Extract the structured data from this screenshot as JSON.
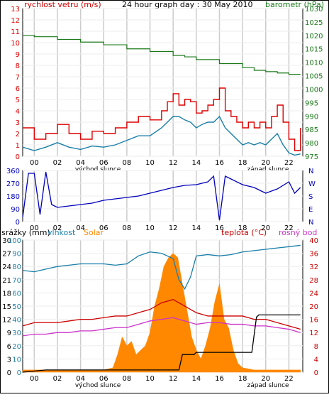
{
  "header": {
    "wind_label": "rychlost vetru (m/s)",
    "title": "24 hour graph day : 30 May 2010",
    "baro_label": "barometr (hPa)",
    "rain_label": "srážky (mm)",
    "humidity_label": "vlhkost",
    "solar_label": "Solar",
    "temp_label": "teplota (°C)",
    "dew_label": "rosný bod"
  },
  "colors": {
    "wind_max": "#dd0000",
    "wind_avg": "#1a7fa8",
    "pressure": "#1a7a1a",
    "direction": "#0000bb",
    "humidity": "#1a7fa8",
    "solar": "#ff8800",
    "temperature": "#cc0000",
    "dew": "#cc33cc",
    "rain": "#000000",
    "grid": "#cccccc"
  },
  "chart_data": [
    {
      "type": "line",
      "name": "wind-and-pressure",
      "x_ticks": [
        "00",
        "02",
        "04",
        "06",
        "08",
        "10",
        "12",
        "14",
        "16",
        "18",
        "20",
        "22"
      ],
      "sunrise_label": "východ slunce",
      "sunset_label": "západ slunce",
      "wind_ylim": [
        0,
        13
      ],
      "wind_ticks": [
        0,
        1,
        2,
        3,
        4,
        5,
        6,
        7,
        8,
        9,
        10,
        11,
        12,
        13
      ],
      "pressure_ylim": [
        975,
        1030
      ],
      "pressure_ticks": [
        975,
        980,
        985,
        990,
        995,
        1000,
        1005,
        1010,
        1015,
        1020,
        1025,
        1030
      ],
      "wind_max": {
        "x": [
          -1,
          0,
          1,
          2,
          3,
          4,
          5,
          6,
          7,
          8,
          9,
          10,
          11,
          11.5,
          12,
          12.5,
          13,
          13.5,
          14,
          14.5,
          15,
          15.5,
          16,
          16.5,
          17,
          17.5,
          18,
          18.5,
          19,
          19.5,
          20,
          20.5,
          21,
          21.5,
          22,
          22.5,
          23
        ],
        "values": [
          2.5,
          1.5,
          2.0,
          2.8,
          2.0,
          1.5,
          2.2,
          2.0,
          2.5,
          3.0,
          3.5,
          3.2,
          4.0,
          4.8,
          5.5,
          4.5,
          5.0,
          4.8,
          3.8,
          4.0,
          4.5,
          5.0,
          6.0,
          4.0,
          3.5,
          3.0,
          2.5,
          3.0,
          2.5,
          3.0,
          2.5,
          3.5,
          4.5,
          3.0,
          1.5,
          0.5,
          2.5
        ]
      },
      "wind_avg": {
        "x": [
          -1,
          0,
          1,
          2,
          3,
          4,
          5,
          6,
          7,
          8,
          9,
          10,
          11,
          11.5,
          12,
          12.5,
          13,
          13.5,
          14,
          14.5,
          15,
          15.5,
          16,
          16.5,
          17,
          17.5,
          18,
          18.5,
          19,
          19.5,
          20,
          20.5,
          21,
          21.5,
          22,
          22.5,
          23
        ],
        "values": [
          0.8,
          0.5,
          0.8,
          1.2,
          0.8,
          0.6,
          0.9,
          0.8,
          1.0,
          1.4,
          1.8,
          1.8,
          2.5,
          3.0,
          3.5,
          3.5,
          3.2,
          3.0,
          2.5,
          2.8,
          3.0,
          3.0,
          3.5,
          2.5,
          2.0,
          1.5,
          1.0,
          1.2,
          1.0,
          1.2,
          1.0,
          1.5,
          2.0,
          1.0,
          0.3,
          0.1,
          0.2
        ]
      },
      "pressure": {
        "x": [
          -1,
          0,
          2,
          4,
          6,
          8,
          10,
          12,
          13,
          14,
          16,
          18,
          19,
          20,
          21,
          22,
          23
        ],
        "values": [
          1020,
          1019.5,
          1018.5,
          1017.5,
          1016.5,
          1015,
          1014,
          1012.5,
          1012,
          1011,
          1009.5,
          1008,
          1007,
          1006.5,
          1006,
          1005.5,
          1005.5
        ]
      }
    },
    {
      "type": "line",
      "name": "wind-direction",
      "x_ticks": [
        "00",
        "02",
        "04",
        "06",
        "08",
        "10",
        "12",
        "14",
        "16",
        "18",
        "20",
        "22"
      ],
      "ylim": [
        0,
        360
      ],
      "ticks": [
        0,
        90,
        180,
        270,
        360
      ],
      "compass": [
        "N",
        "W",
        "S",
        "E",
        "N"
      ],
      "direction": {
        "x": [
          -1,
          -0.5,
          0,
          0.5,
          1,
          1.5,
          2,
          3,
          4,
          5,
          6,
          7,
          8,
          9,
          10,
          11,
          12,
          13,
          14,
          15,
          15.5,
          16,
          16.5,
          17,
          18,
          19,
          20,
          21,
          22,
          22.5,
          23
        ],
        "values": [
          30,
          340,
          340,
          50,
          350,
          120,
          100,
          110,
          120,
          130,
          150,
          160,
          170,
          180,
          200,
          220,
          240,
          255,
          260,
          280,
          320,
          10,
          320,
          300,
          260,
          240,
          200,
          230,
          280,
          200,
          240
        ]
      }
    },
    {
      "type": "line",
      "name": "rain-humidity-solar-temperature",
      "x_ticks": [
        "00",
        "02",
        "04",
        "06",
        "08",
        "10",
        "12",
        "14",
        "16",
        "18",
        "20",
        "22"
      ],
      "sunrise_label": "východ slunce",
      "sunset_label": "západ slunce",
      "rain_ylim": [
        0,
        30
      ],
      "rain_ticks": [
        0,
        3,
        6,
        9,
        12,
        15,
        18,
        21,
        24,
        27,
        30
      ],
      "humidity_ticks": [
        0,
        10,
        20,
        30,
        40,
        50,
        60,
        70,
        80,
        90,
        100
      ],
      "temp_ylim": [
        0,
        40
      ],
      "temp_ticks": [
        0,
        4,
        8,
        12,
        16,
        20,
        24,
        28,
        32,
        36,
        40
      ],
      "humidity": {
        "x": [
          -1,
          0,
          1,
          2,
          3,
          4,
          5,
          6,
          7,
          8,
          9,
          10,
          11,
          12,
          12.5,
          13,
          13.5,
          14,
          15,
          16,
          17,
          18,
          19,
          20,
          21,
          22,
          23
        ],
        "values": [
          77,
          76,
          78,
          80,
          81,
          82,
          82,
          82,
          81,
          82,
          88,
          91,
          90,
          86,
          70,
          63,
          72,
          88,
          89,
          88,
          89,
          91,
          92,
          93,
          94,
          95,
          96
        ]
      },
      "temperature": {
        "x": [
          -1,
          0,
          1,
          2,
          3,
          4,
          5,
          6,
          7,
          8,
          9,
          10,
          11,
          12,
          13,
          14,
          15,
          16,
          17,
          18,
          19,
          20,
          21,
          22,
          23
        ],
        "values": [
          14,
          15,
          15,
          15,
          15.5,
          16,
          16,
          16.5,
          17,
          17,
          18,
          19,
          21,
          22,
          20,
          18,
          17,
          17,
          17,
          17,
          16,
          16,
          15,
          14,
          13
        ]
      },
      "dew": {
        "x": [
          -1,
          0,
          1,
          2,
          3,
          4,
          5,
          6,
          7,
          8,
          9,
          10,
          11,
          12,
          13,
          14,
          15,
          16,
          17,
          18,
          19,
          20,
          21,
          22,
          23
        ],
        "values": [
          11,
          11.5,
          11.5,
          12,
          12,
          12.5,
          12.5,
          13,
          13.5,
          13.5,
          14.5,
          15.5,
          16,
          16.5,
          15.5,
          14.5,
          15,
          15,
          14.5,
          14.5,
          14,
          14,
          13.5,
          13,
          12
        ]
      },
      "solar": {
        "x": [
          -1,
          6,
          6.8,
          7.2,
          7.6,
          8.0,
          8.4,
          8.8,
          9.2,
          9.6,
          10.0,
          10.4,
          10.8,
          11.2,
          11.6,
          12.0,
          12.4,
          12.8,
          13.2,
          13.6,
          14.0,
          14.4,
          14.8,
          15.2,
          15.6,
          16.0,
          16.4,
          16.8,
          17.2,
          17.6,
          18.0,
          19,
          23
        ],
        "values": [
          0.5,
          0.5,
          1,
          4,
          8,
          6,
          7,
          4,
          5,
          6,
          9,
          15,
          19,
          24,
          26,
          27,
          26,
          20,
          14,
          8,
          5,
          3,
          6,
          10,
          16,
          20,
          12,
          10,
          5,
          2,
          1,
          0.5,
          0.5
        ]
      },
      "rain": {
        "x": [
          -1,
          1,
          6,
          12.5,
          12.8,
          13.0,
          13.8,
          14.0,
          18.8,
          19.2,
          19.4,
          23
        ],
        "values": [
          0,
          0.5,
          0.5,
          0.5,
          4,
          4,
          4,
          4.5,
          4.5,
          12.5,
          13,
          13
        ]
      }
    }
  ]
}
